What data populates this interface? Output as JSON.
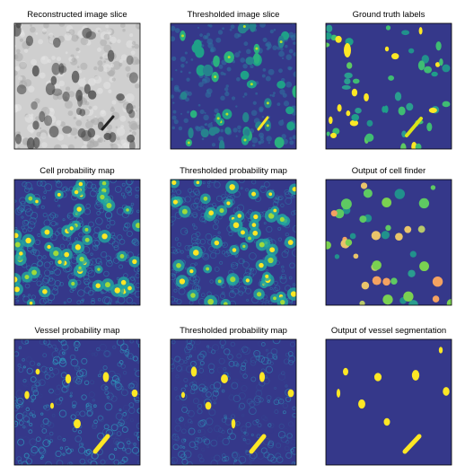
{
  "panels": [
    {
      "title": "Reconstructed image slice"
    },
    {
      "title": "Thresholded image slice"
    },
    {
      "title": "Ground truth labels"
    },
    {
      "title": "Cell probability map"
    },
    {
      "title": "Thresholded probability map"
    },
    {
      "title": "Output of cell finder"
    },
    {
      "title": "Vessel probability map"
    },
    {
      "title": "Thresholded probability map"
    },
    {
      "title": "Output of vessel segmentation"
    }
  ]
}
